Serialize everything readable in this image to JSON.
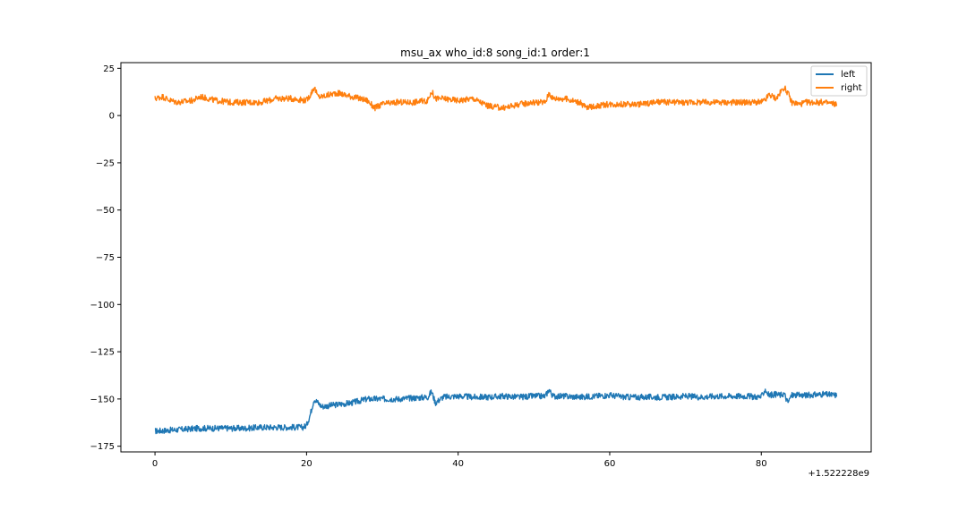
{
  "chart_data": {
    "type": "line",
    "title": "msu_ax who_id:8 song_id:1 order:1",
    "xlabel": "",
    "ylabel": "",
    "x_offset_label": "+1.522228e9",
    "xlim": [
      -4.5,
      94.5
    ],
    "ylim": [
      -178,
      28
    ],
    "xticks": [
      0,
      20,
      40,
      60,
      80
    ],
    "xtick_labels": [
      "0",
      "20",
      "40",
      "60",
      "80"
    ],
    "yticks": [
      25,
      0,
      -25,
      -50,
      -75,
      -100,
      -125,
      -150,
      -175
    ],
    "ytick_labels": [
      "25",
      "0",
      "−25",
      "−50",
      "−75",
      "−100",
      "−125",
      "−150",
      "−175"
    ],
    "grid": false,
    "legend_position": "upper right",
    "series": [
      {
        "name": "left",
        "color": "#1f77b4",
        "x": [
          0,
          2,
          4,
          6,
          8,
          10,
          12,
          14,
          16,
          18,
          19.5,
          20,
          20.5,
          21,
          21.5,
          22,
          24,
          26,
          28,
          30,
          32,
          34,
          36,
          36.5,
          37,
          38,
          40,
          42,
          44,
          46,
          48,
          50,
          51.5,
          52,
          52.5,
          54,
          56,
          58,
          60,
          62,
          64,
          66,
          68,
          70,
          72,
          74,
          76,
          78,
          80,
          80.5,
          81,
          82,
          82.5,
          83,
          83.5,
          84,
          86,
          88,
          90
        ],
        "y": [
          -167,
          -166.5,
          -166,
          -165.5,
          -165.5,
          -165.5,
          -165.5,
          -165,
          -165,
          -165,
          -165,
          -164,
          -158,
          -150,
          -152,
          -154,
          -153,
          -152,
          -150,
          -150,
          -150,
          -149.5,
          -149,
          -146,
          -152,
          -149,
          -148.5,
          -149,
          -149,
          -148.5,
          -149,
          -148.5,
          -148.5,
          -145,
          -148.5,
          -148.5,
          -149,
          -148.5,
          -148,
          -149,
          -149,
          -149,
          -149,
          -148.5,
          -149,
          -148.5,
          -148.5,
          -148.5,
          -149,
          -145,
          -148,
          -147.5,
          -148,
          -147,
          -152,
          -148,
          -148,
          -147.5,
          -148
        ]
      },
      {
        "name": "right",
        "color": "#ff7f0e",
        "x": [
          0,
          1,
          2,
          3,
          4,
          5,
          6,
          8,
          10,
          12,
          14,
          16,
          18,
          20,
          20.5,
          21,
          21.5,
          22,
          24,
          26,
          28,
          29,
          30,
          32,
          34,
          36,
          36.5,
          37,
          38,
          40,
          42,
          44,
          46,
          48,
          50,
          51.5,
          52,
          52.5,
          54,
          56,
          57,
          58,
          60,
          62,
          64,
          66,
          68,
          70,
          72,
          74,
          76,
          78,
          80,
          80.5,
          81,
          82,
          83,
          83.5,
          84,
          85,
          86,
          88,
          90
        ],
        "y": [
          9,
          10,
          8,
          7,
          7.5,
          8,
          10,
          8,
          7,
          7,
          7,
          9,
          9,
          8,
          11,
          15,
          10,
          10,
          12,
          10,
          8,
          4,
          6,
          7,
          7,
          8,
          13,
          9,
          9,
          8,
          9,
          5,
          4,
          6,
          7,
          7,
          12,
          9,
          9,
          7,
          4,
          5,
          6,
          6,
          6,
          7,
          7,
          7,
          7,
          7,
          7,
          7,
          7,
          8,
          11,
          9,
          15,
          12,
          7,
          6,
          7,
          7,
          6
        ]
      }
    ]
  }
}
